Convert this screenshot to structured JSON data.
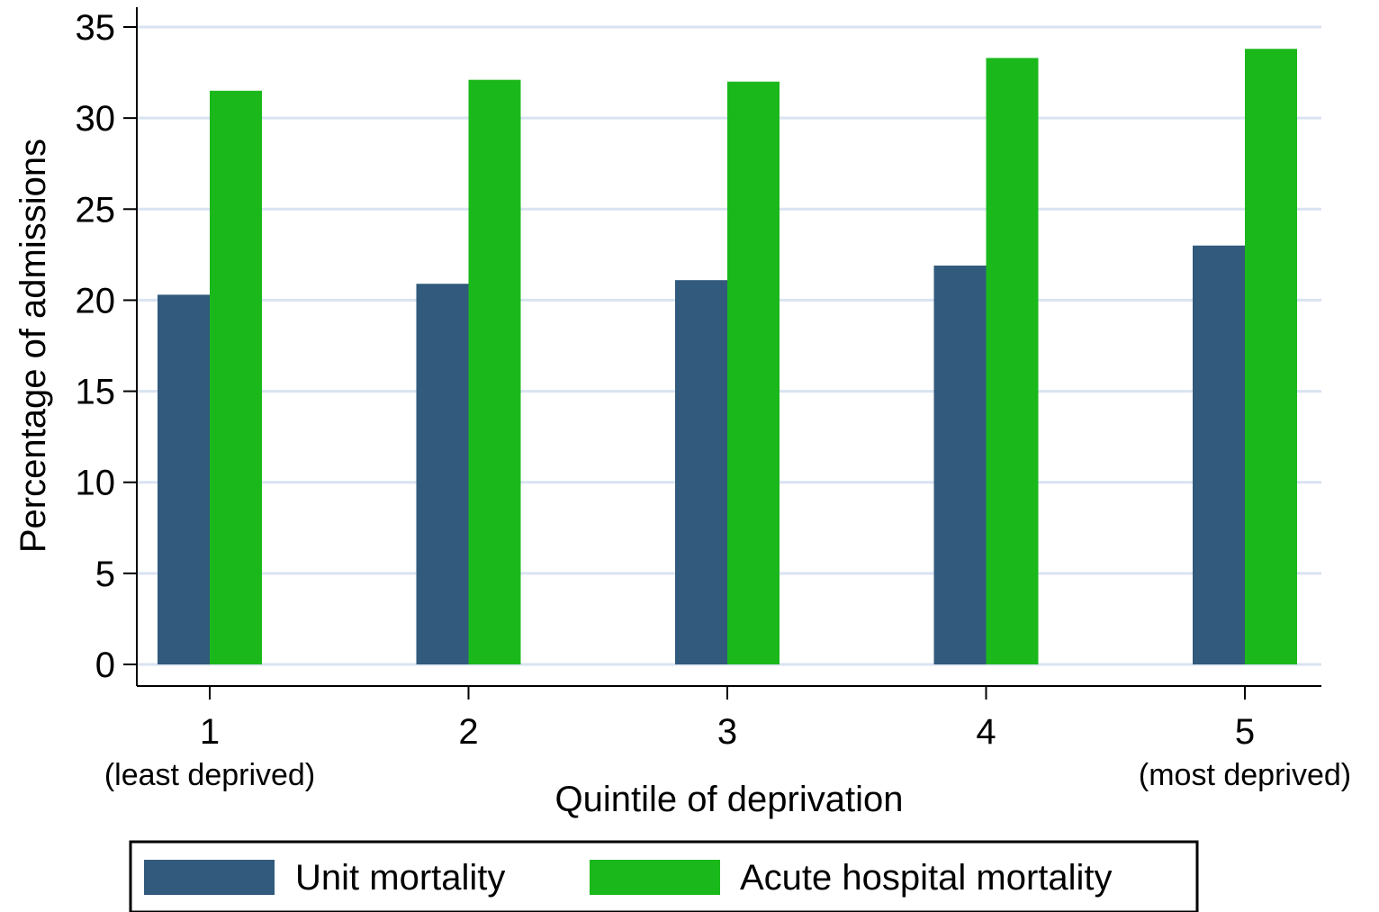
{
  "chart_data": {
    "type": "bar",
    "categories": [
      "1",
      "2",
      "3",
      "4",
      "5"
    ],
    "category_sublabels": [
      "(least deprived)",
      "",
      "",
      "",
      "(most deprived)"
    ],
    "series": [
      {
        "name": "Unit mortality",
        "color": "#325a7c",
        "values": [
          20.3,
          20.9,
          21.1,
          21.9,
          23.0
        ]
      },
      {
        "name": "Acute hospital mortality",
        "color": "#1bb81b",
        "values": [
          31.5,
          32.1,
          32.0,
          33.3,
          33.8
        ]
      }
    ],
    "xlabel": "Quintile of deprivation",
    "ylabel": "Percentage of admissions",
    "ylim": [
      0,
      35
    ],
    "yticks": [
      0,
      5,
      10,
      15,
      20,
      25,
      30,
      35
    ],
    "grid": true,
    "legend_position": "bottom"
  }
}
